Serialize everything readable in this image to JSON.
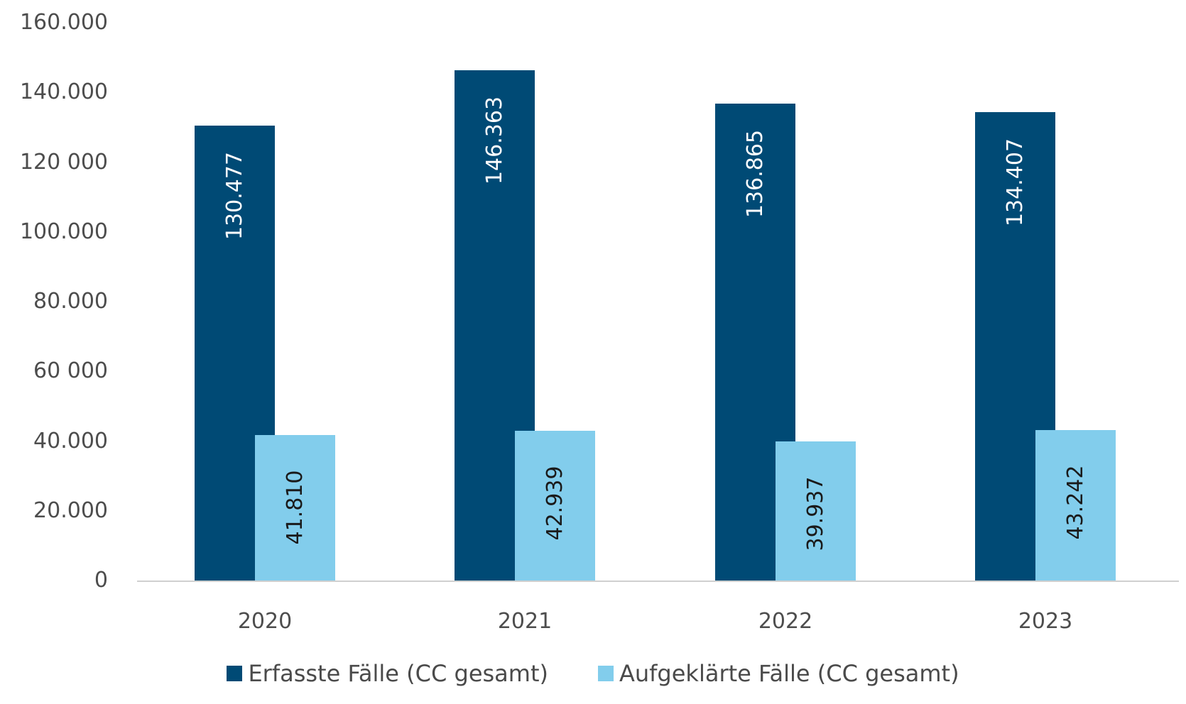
{
  "chart_data": {
    "type": "bar",
    "title": "",
    "xlabel": "",
    "ylabel": "",
    "categories": [
      "2020",
      "2021",
      "2022",
      "2023"
    ],
    "series": [
      {
        "name": "Erfasste Fälle (CC gesamt)",
        "color": "#004a75",
        "values": [
          130477,
          146363,
          136865,
          134407
        ],
        "labels": [
          "130.477",
          "146.363",
          "136.865",
          "134.407"
        ],
        "label_color": "#ffffff"
      },
      {
        "name": "Aufgeklärte Fälle (CC gesamt)",
        "color": "#82cdec",
        "values": [
          41810,
          42939,
          39937,
          43242
        ],
        "labels": [
          "41.810",
          "42.939",
          "39.937",
          "43.242"
        ],
        "label_color": "#1a1a1a"
      }
    ],
    "ylim": [
      0,
      160000
    ],
    "yticks": [
      0,
      20000,
      40000,
      60000,
      80000,
      100000,
      120000,
      140000,
      160000
    ],
    "ytick_labels": [
      "0",
      "20.000",
      "40.000",
      "60 000",
      "80.000",
      "100.000",
      "120 000",
      "140.000",
      "160.000"
    ],
    "grid": false,
    "legend_position": "bottom"
  },
  "legend": {
    "items": [
      {
        "label": "Erfasste Fälle (CC gesamt)",
        "color": "#004a75"
      },
      {
        "label": "Aufgeklärte Fälle (CC gesamt)",
        "color": "#82cdec"
      }
    ]
  }
}
